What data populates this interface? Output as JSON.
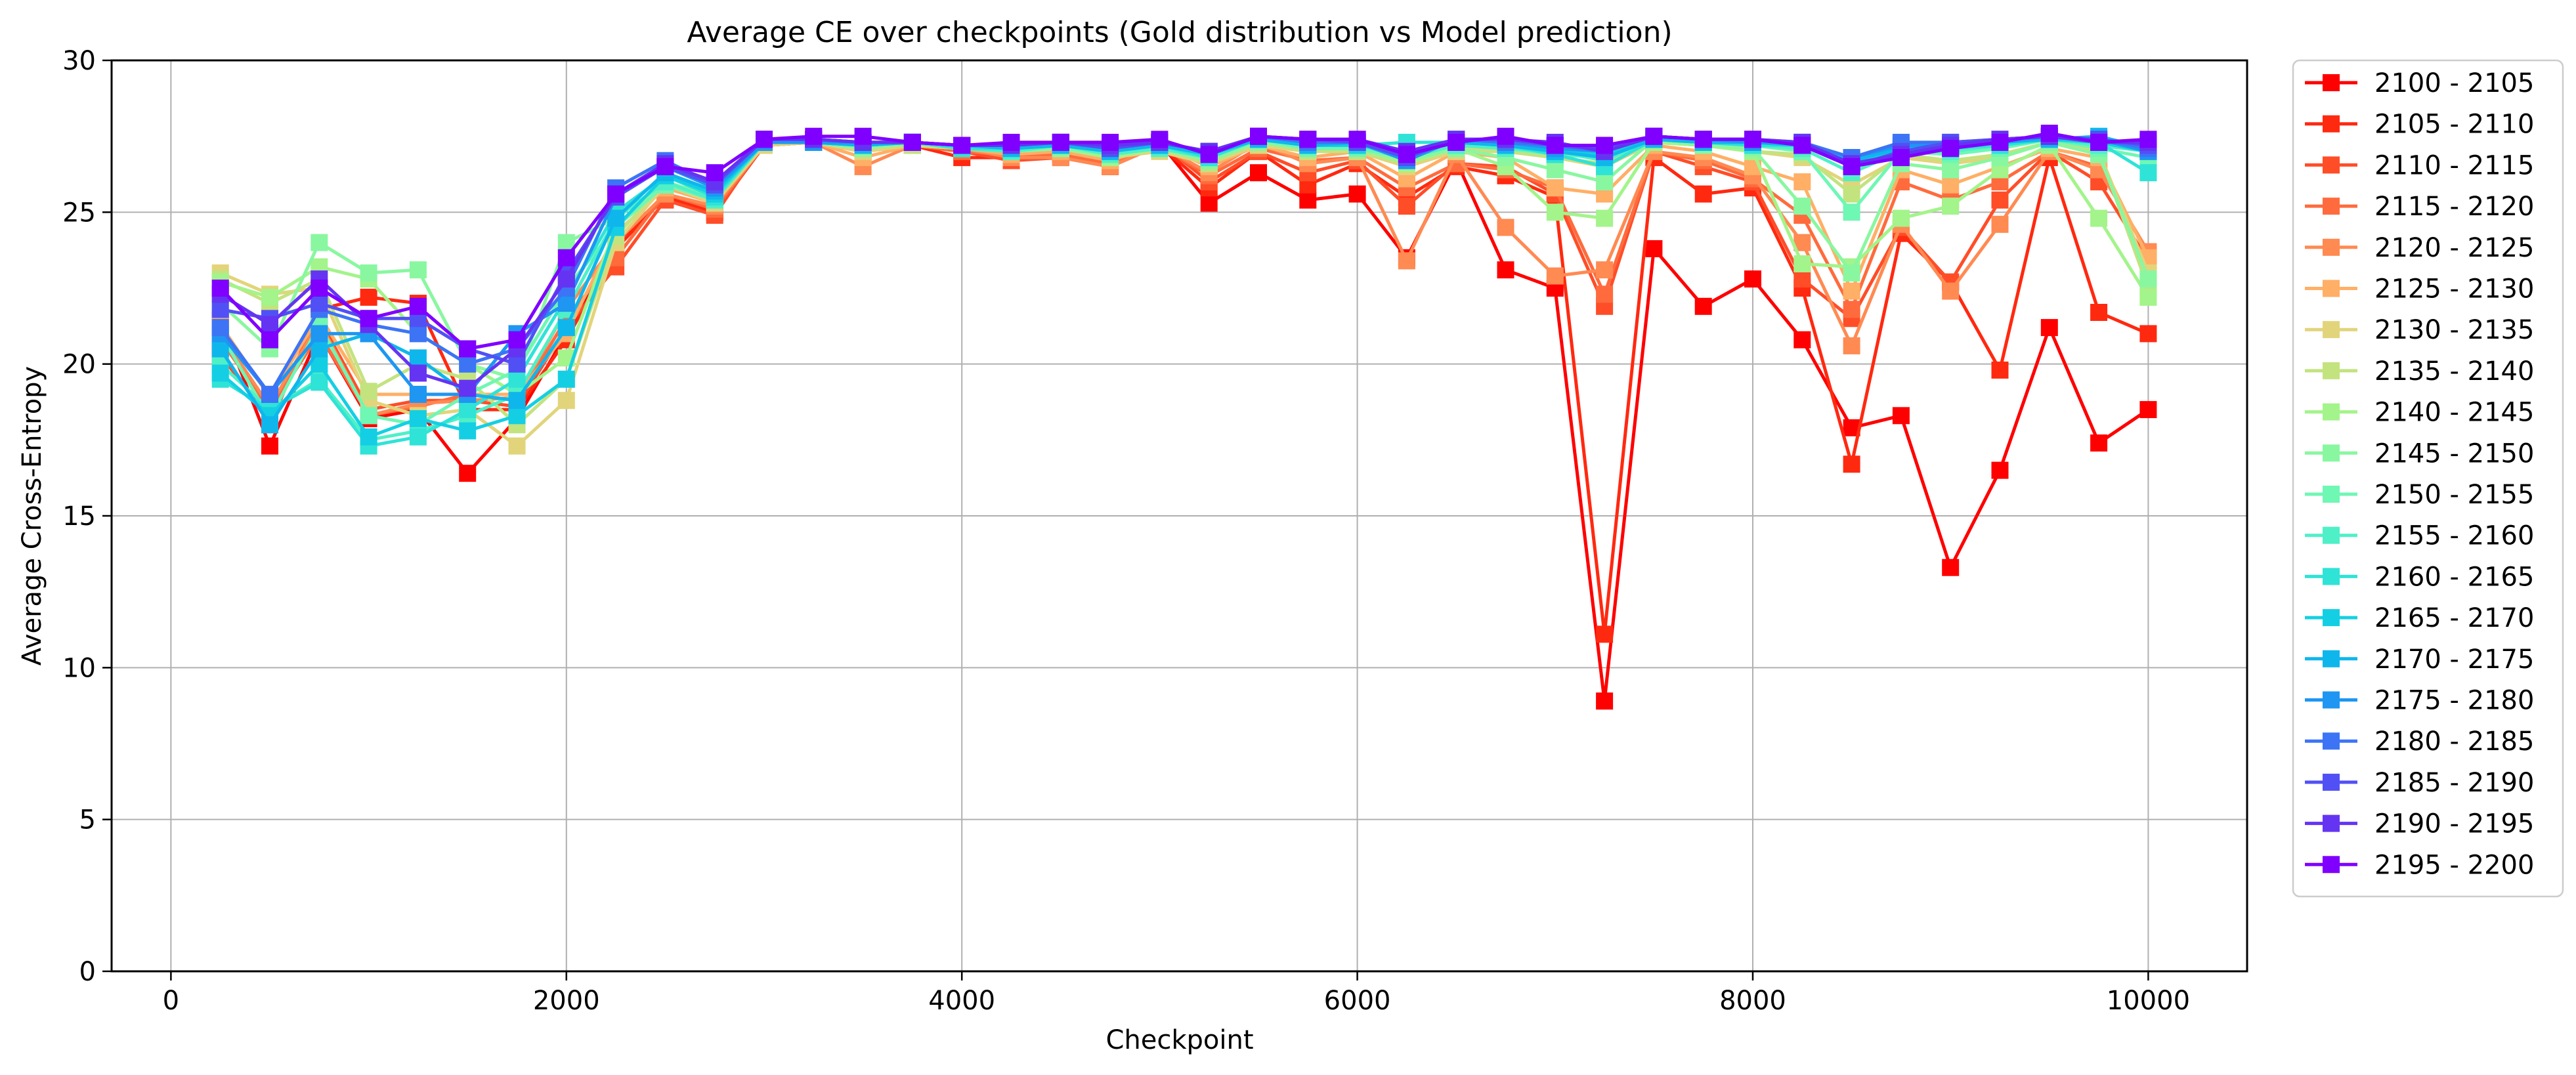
{
  "chart_data": {
    "type": "line",
    "title": "Average CE over checkpoints (Gold distribution vs Model prediction)",
    "xlabel": "Checkpoint",
    "ylabel": "Average Cross-Entropy",
    "xlim": [
      -300,
      10500
    ],
    "ylim": [
      0,
      30
    ],
    "xticks": [
      0,
      2000,
      4000,
      6000,
      8000,
      10000
    ],
    "yticks": [
      0,
      5,
      10,
      15,
      20,
      25,
      30
    ],
    "grid": true,
    "legend_position": "outside-right",
    "marker": "square",
    "x": [
      250,
      500,
      750,
      1000,
      1250,
      1500,
      1750,
      2000,
      2250,
      2500,
      2750,
      3000,
      3250,
      3500,
      3750,
      4000,
      4250,
      4500,
      4750,
      5000,
      5250,
      5500,
      5750,
      6000,
      6250,
      6500,
      6750,
      7000,
      7250,
      7500,
      7750,
      8000,
      8250,
      8500,
      8750,
      9000,
      9250,
      9500,
      9750,
      10000
    ],
    "series": [
      {
        "name": "2100 - 2105",
        "color": "#ff0000",
        "values": [
          21.5,
          17.3,
          21.0,
          18.2,
          18.5,
          16.4,
          18.2,
          21.0,
          24.0,
          25.5,
          25.0,
          27.2,
          27.3,
          27.0,
          27.2,
          27.0,
          27.0,
          27.0,
          26.8,
          27.3,
          25.3,
          26.3,
          25.4,
          25.6,
          23.5,
          26.7,
          23.1,
          22.5,
          8.9,
          23.8,
          21.9,
          22.8,
          20.8,
          17.9,
          18.3,
          13.3,
          16.5,
          21.2,
          17.4,
          18.5
        ]
      },
      {
        "name": "2105 - 2110",
        "color": "#ff2910",
        "values": [
          20.5,
          18.0,
          21.8,
          22.2,
          22.0,
          18.5,
          18.5,
          20.8,
          23.8,
          25.5,
          25.0,
          27.2,
          27.3,
          27.1,
          27.2,
          26.8,
          26.8,
          26.9,
          26.5,
          27.2,
          25.8,
          27.0,
          25.9,
          26.6,
          25.5,
          26.5,
          26.2,
          25.5,
          11.1,
          26.8,
          25.6,
          25.8,
          22.5,
          16.7,
          24.3,
          22.7,
          19.8,
          26.8,
          21.7,
          21.0
        ]
      },
      {
        "name": "2110 - 2115",
        "color": "#ff4d28",
        "values": [
          20.3,
          18.2,
          21.5,
          18.5,
          18.8,
          18.8,
          18.6,
          21.2,
          23.2,
          25.4,
          24.9,
          27.3,
          27.3,
          27.0,
          27.3,
          27.0,
          26.7,
          26.8,
          26.5,
          27.3,
          26.0,
          27.0,
          26.3,
          26.7,
          25.2,
          26.6,
          26.5,
          25.6,
          21.9,
          27.0,
          26.5,
          26.0,
          22.8,
          21.5,
          24.5,
          22.7,
          25.4,
          27.0,
          26.0,
          23.4
        ]
      },
      {
        "name": "2115 - 2120",
        "color": "#ff6b3d",
        "values": [
          20.8,
          18.5,
          21.0,
          18.3,
          18.6,
          19.0,
          18.8,
          21.5,
          23.5,
          25.6,
          25.1,
          27.2,
          27.3,
          27.2,
          27.2,
          27.0,
          26.9,
          26.9,
          26.6,
          27.2,
          26.2,
          27.1,
          26.7,
          26.8,
          25.8,
          26.6,
          26.4,
          25.8,
          22.3,
          27.0,
          26.7,
          26.1,
          24.9,
          21.8,
          26.0,
          25.4,
          26.0,
          27.0,
          26.5,
          23.6
        ]
      },
      {
        "name": "2120 - 2125",
        "color": "#ff8a52",
        "values": [
          21.0,
          18.6,
          21.4,
          18.3,
          18.7,
          18.8,
          18.9,
          21.8,
          24.0,
          25.6,
          25.2,
          27.2,
          27.3,
          26.5,
          27.2,
          27.1,
          26.8,
          26.8,
          26.5,
          27.2,
          26.3,
          27.3,
          26.6,
          26.8,
          23.4,
          26.9,
          24.5,
          22.9,
          23.1,
          27.0,
          26.8,
          26.2,
          24.0,
          20.6,
          24.6,
          22.4,
          24.6,
          27.0,
          26.4,
          23.7
        ]
      },
      {
        "name": "2125 - 2130",
        "color": "#ffaf66",
        "values": [
          21.3,
          18.9,
          21.6,
          19.0,
          19.0,
          19.0,
          19.0,
          21.0,
          24.3,
          25.8,
          25.3,
          27.2,
          27.3,
          26.8,
          27.2,
          27.1,
          26.9,
          27.0,
          26.7,
          27.2,
          26.5,
          27.2,
          26.8,
          27.0,
          26.1,
          27.0,
          26.8,
          25.8,
          25.6,
          27.2,
          27.0,
          26.5,
          26.0,
          22.4,
          26.4,
          25.9,
          26.5,
          27.1,
          26.8,
          23.5
        ]
      },
      {
        "name": "2130 - 2135",
        "color": "#e2d47a",
        "values": [
          23.0,
          22.3,
          22.5,
          18.8,
          18.3,
          18.5,
          17.3,
          18.8,
          24.0,
          25.9,
          25.3,
          27.2,
          27.3,
          27.0,
          27.2,
          27.1,
          27.0,
          27.1,
          26.8,
          27.0,
          26.6,
          27.2,
          27.0,
          27.0,
          26.5,
          27.0,
          27.0,
          26.8,
          26.5,
          27.3,
          27.2,
          27.0,
          26.8,
          25.9,
          26.8,
          26.6,
          26.8,
          27.3,
          27.0,
          23.0
        ]
      },
      {
        "name": "2135 - 2140",
        "color": "#c3e37f",
        "values": [
          22.8,
          22.0,
          22.8,
          19.1,
          20.0,
          19.5,
          18.0,
          19.5,
          24.2,
          26.0,
          25.4,
          27.3,
          27.3,
          27.1,
          27.2,
          27.1,
          27.0,
          27.1,
          26.8,
          27.1,
          26.6,
          27.3,
          27.0,
          27.0,
          26.6,
          27.1,
          27.0,
          26.8,
          26.6,
          27.3,
          27.2,
          27.0,
          26.9,
          25.6,
          26.9,
          26.7,
          26.9,
          27.3,
          27.0,
          22.5
        ]
      },
      {
        "name": "2140 - 2145",
        "color": "#a3f48a",
        "values": [
          22.7,
          22.2,
          23.2,
          22.8,
          21.0,
          20.0,
          19.0,
          20.2,
          24.5,
          26.0,
          25.5,
          27.3,
          27.3,
          27.1,
          27.3,
          27.1,
          27.0,
          27.1,
          26.8,
          27.1,
          26.7,
          27.3,
          27.1,
          27.1,
          26.6,
          27.1,
          26.5,
          25.0,
          24.8,
          27.3,
          27.2,
          27.0,
          23.3,
          23.2,
          24.8,
          25.2,
          26.4,
          27.2,
          24.8,
          22.2
        ]
      },
      {
        "name": "2145 - 2150",
        "color": "#89f7a0",
        "values": [
          22.0,
          20.5,
          24.0,
          23.0,
          23.1,
          20.0,
          19.5,
          24.0,
          24.8,
          26.0,
          25.5,
          27.3,
          27.3,
          27.1,
          27.3,
          27.1,
          27.0,
          27.1,
          26.9,
          27.1,
          26.7,
          27.3,
          27.1,
          27.1,
          26.7,
          27.1,
          26.8,
          26.4,
          26.0,
          27.4,
          27.2,
          27.1,
          25.2,
          23.0,
          26.6,
          26.4,
          26.8,
          27.3,
          26.9,
          22.8
        ]
      },
      {
        "name": "2150 - 2155",
        "color": "#6ff7b4",
        "values": [
          21.0,
          18.2,
          21.3,
          18.3,
          18.0,
          19.0,
          19.8,
          22.5,
          24.5,
          25.9,
          25.4,
          27.3,
          27.3,
          27.2,
          27.3,
          27.1,
          27.0,
          27.2,
          26.9,
          27.1,
          26.8,
          27.4,
          27.1,
          27.1,
          26.8,
          27.2,
          27.1,
          26.9,
          26.8,
          27.4,
          27.3,
          27.2,
          27.0,
          25.0,
          27.0,
          26.9,
          27.1,
          27.4,
          27.1,
          26.8
        ]
      },
      {
        "name": "2155 - 2160",
        "color": "#4ff0c7",
        "values": [
          20.0,
          18.5,
          19.5,
          17.5,
          17.8,
          18.3,
          19.0,
          21.8,
          24.8,
          26.0,
          25.4,
          27.3,
          27.3,
          27.2,
          27.3,
          27.1,
          27.0,
          27.2,
          26.9,
          27.1,
          26.8,
          27.4,
          27.2,
          27.2,
          26.8,
          27.2,
          27.1,
          27.0,
          26.7,
          27.4,
          27.3,
          27.2,
          27.1,
          26.3,
          27.0,
          27.0,
          27.2,
          27.4,
          27.2,
          27.0
        ]
      },
      {
        "name": "2160 - 2165",
        "color": "#2fe3d7",
        "values": [
          19.5,
          18.5,
          19.4,
          17.3,
          17.6,
          18.5,
          19.5,
          22.2,
          25.0,
          26.2,
          25.5,
          27.3,
          27.3,
          27.2,
          27.3,
          27.1,
          27.1,
          27.2,
          27.0,
          27.2,
          26.8,
          27.4,
          27.2,
          27.2,
          27.3,
          27.3,
          27.2,
          26.9,
          26.5,
          27.4,
          27.3,
          27.2,
          27.2,
          26.5,
          27.1,
          27.1,
          27.2,
          27.4,
          27.3,
          26.3
        ]
      },
      {
        "name": "2165 - 2170",
        "color": "#14cfe3",
        "values": [
          19.7,
          18.3,
          20.0,
          17.6,
          18.2,
          17.8,
          18.3,
          19.5,
          24.5,
          26.2,
          25.6,
          27.3,
          27.3,
          27.2,
          27.3,
          27.2,
          27.1,
          27.2,
          27.0,
          27.2,
          26.9,
          27.4,
          27.2,
          27.2,
          27.0,
          27.3,
          27.2,
          27.0,
          26.9,
          27.4,
          27.3,
          27.3,
          27.2,
          26.6,
          27.1,
          27.1,
          27.3,
          27.4,
          27.3,
          27.0
        ]
      },
      {
        "name": "2170 - 2175",
        "color": "#0fb6ec",
        "values": [
          20.5,
          18.0,
          20.5,
          21.0,
          20.2,
          19.0,
          18.8,
          21.2,
          24.8,
          26.3,
          25.7,
          27.3,
          27.3,
          27.2,
          27.3,
          27.2,
          27.1,
          27.2,
          27.0,
          27.2,
          26.9,
          27.4,
          27.2,
          27.3,
          27.0,
          27.3,
          27.2,
          27.0,
          26.8,
          27.4,
          27.3,
          27.3,
          27.2,
          26.7,
          27.1,
          27.1,
          27.3,
          27.4,
          27.5,
          27.1
        ]
      },
      {
        "name": "2175 - 2180",
        "color": "#1e96f2",
        "values": [
          21.0,
          19.0,
          21.0,
          21.0,
          19.0,
          19.0,
          21.0,
          22.0,
          25.5,
          26.5,
          25.8,
          27.3,
          27.3,
          27.3,
          27.3,
          27.2,
          27.2,
          27.3,
          27.1,
          27.3,
          27.0,
          27.5,
          27.3,
          27.3,
          26.7,
          27.4,
          27.3,
          27.1,
          27.0,
          27.5,
          27.4,
          27.3,
          27.3,
          26.8,
          27.2,
          27.2,
          27.3,
          27.5,
          27.4,
          27.0
        ]
      },
      {
        "name": "2180 - 2185",
        "color": "#3c74f5",
        "values": [
          21.2,
          19.0,
          21.8,
          21.3,
          21.0,
          20.0,
          20.5,
          22.5,
          25.8,
          26.7,
          25.9,
          27.4,
          27.4,
          27.3,
          27.3,
          27.2,
          27.2,
          27.3,
          27.1,
          27.3,
          27.0,
          27.5,
          27.3,
          27.3,
          26.9,
          27.4,
          27.3,
          27.2,
          27.0,
          27.5,
          27.4,
          27.4,
          27.3,
          26.8,
          27.3,
          27.3,
          27.4,
          27.5,
          27.4,
          27.1
        ]
      },
      {
        "name": "2185 - 2190",
        "color": "#5150f5",
        "values": [
          21.8,
          21.5,
          22.0,
          21.5,
          21.5,
          20.5,
          20.0,
          23.0,
          25.5,
          26.5,
          25.9,
          27.4,
          27.4,
          27.3,
          27.3,
          27.2,
          27.2,
          27.3,
          27.1,
          27.3,
          27.0,
          27.5,
          27.4,
          27.3,
          26.8,
          27.4,
          27.4,
          27.2,
          27.1,
          27.5,
          27.4,
          27.4,
          27.2,
          26.5,
          27.0,
          27.3,
          27.4,
          27.5,
          27.4,
          27.2
        ]
      },
      {
        "name": "2190 - 2195",
        "color": "#6534f2",
        "values": [
          22.3,
          21.3,
          22.8,
          21.3,
          19.7,
          19.2,
          20.5,
          22.8,
          25.6,
          26.6,
          26.0,
          27.4,
          27.4,
          27.3,
          27.3,
          27.2,
          27.2,
          27.3,
          27.2,
          27.3,
          27.0,
          27.5,
          27.4,
          27.4,
          27.0,
          27.4,
          27.4,
          27.3,
          27.0,
          27.5,
          27.4,
          27.4,
          27.3,
          26.6,
          26.9,
          27.2,
          27.4,
          27.5,
          27.3,
          27.3
        ]
      },
      {
        "name": "2195 - 2200",
        "color": "#7f00ff",
        "values": [
          22.5,
          20.8,
          22.5,
          21.5,
          21.9,
          20.5,
          20.8,
          23.5,
          25.6,
          26.5,
          26.3,
          27.4,
          27.5,
          27.5,
          27.3,
          27.2,
          27.3,
          27.3,
          27.3,
          27.4,
          26.9,
          27.5,
          27.4,
          27.4,
          26.9,
          27.3,
          27.5,
          27.2,
          27.2,
          27.5,
          27.4,
          27.4,
          27.2,
          26.5,
          26.8,
          27.1,
          27.3,
          27.6,
          27.3,
          27.4
        ]
      }
    ]
  }
}
